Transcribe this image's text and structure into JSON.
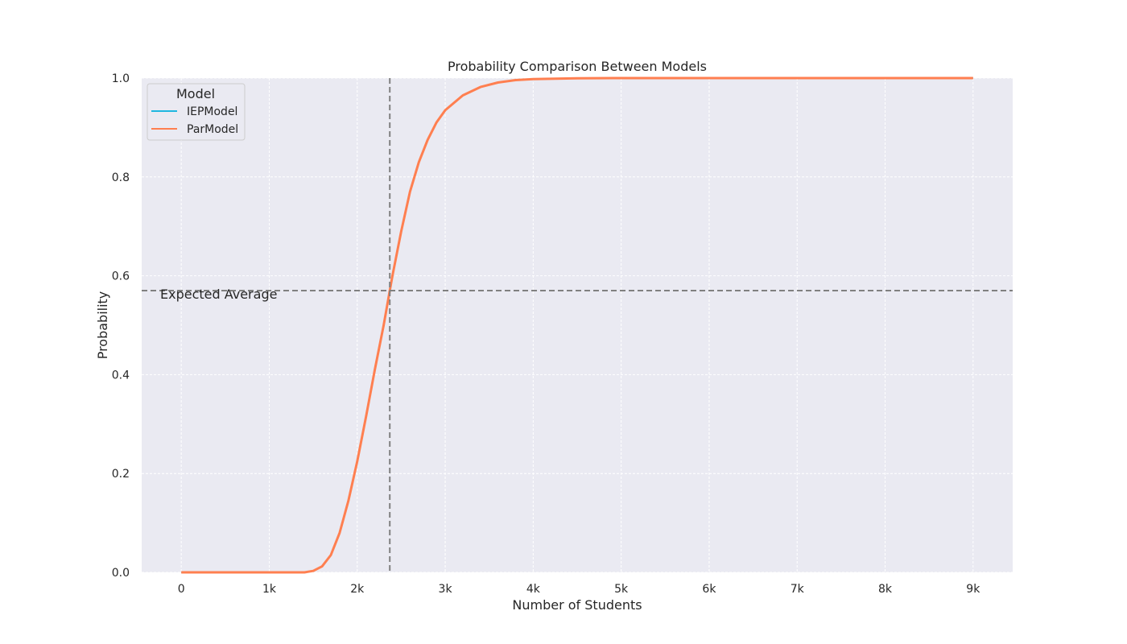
{
  "chart_data": {
    "type": "line",
    "title": "Probability Comparison Between Models",
    "xlabel": "Number of Students",
    "ylabel": "Probability",
    "xlim": [
      -450,
      9450
    ],
    "ylim": [
      0,
      1
    ],
    "x_ticks": [
      {
        "value": 0,
        "label": "0"
      },
      {
        "value": 1000,
        "label": "1k"
      },
      {
        "value": 2000,
        "label": "2k"
      },
      {
        "value": 3000,
        "label": "3k"
      },
      {
        "value": 4000,
        "label": "4k"
      },
      {
        "value": 5000,
        "label": "5k"
      },
      {
        "value": 6000,
        "label": "6k"
      },
      {
        "value": 7000,
        "label": "7k"
      },
      {
        "value": 8000,
        "label": "8k"
      },
      {
        "value": 9000,
        "label": "9k"
      }
    ],
    "y_ticks": [
      {
        "value": 0.0,
        "label": "0.0"
      },
      {
        "value": 0.2,
        "label": "0.2"
      },
      {
        "value": 0.4,
        "label": "0.4"
      },
      {
        "value": 0.6,
        "label": "0.6"
      },
      {
        "value": 0.8,
        "label": "0.8"
      },
      {
        "value": 1.0,
        "label": "1.0"
      }
    ],
    "grid": true,
    "legend": {
      "title": "Model",
      "placement": "top-left",
      "entries": [
        {
          "name": "IEPModel",
          "color": "#1fb7e0"
        },
        {
          "name": "ParModel",
          "color": "#ff7f50"
        }
      ]
    },
    "series": [
      {
        "name": "IEPModel",
        "color": "#1fb7e0",
        "x": [
          0,
          1000,
          1400,
          1500,
          1600,
          1700,
          1800,
          1900,
          2000,
          2100,
          2200,
          2300,
          2370,
          2400,
          2500,
          2600,
          2700,
          2800,
          2900,
          3000,
          3200,
          3400,
          3600,
          3800,
          4000,
          4500,
          5000,
          6000,
          7000,
          8000,
          9000
        ],
        "values": [
          0.0,
          0.0,
          0.0,
          0.003,
          0.012,
          0.035,
          0.08,
          0.145,
          0.225,
          0.315,
          0.41,
          0.5,
          0.57,
          0.6,
          0.69,
          0.77,
          0.83,
          0.875,
          0.91,
          0.935,
          0.965,
          0.982,
          0.991,
          0.996,
          0.998,
          0.9995,
          1.0,
          1.0,
          1.0,
          1.0,
          1.0
        ]
      },
      {
        "name": "ParModel",
        "color": "#ff7f50",
        "x": [
          0,
          1000,
          1400,
          1500,
          1600,
          1700,
          1800,
          1900,
          2000,
          2100,
          2200,
          2300,
          2370,
          2400,
          2500,
          2600,
          2700,
          2800,
          2900,
          3000,
          3200,
          3400,
          3600,
          3800,
          4000,
          4500,
          5000,
          6000,
          7000,
          8000,
          9000
        ],
        "values": [
          0.0,
          0.0,
          0.0,
          0.003,
          0.012,
          0.035,
          0.08,
          0.145,
          0.225,
          0.315,
          0.41,
          0.5,
          0.57,
          0.6,
          0.69,
          0.77,
          0.83,
          0.875,
          0.91,
          0.935,
          0.965,
          0.982,
          0.991,
          0.996,
          0.998,
          0.9995,
          1.0,
          1.0,
          1.0,
          1.0,
          1.0
        ]
      }
    ],
    "reference_lines": {
      "vertical_x": 2370,
      "horizontal_y": 0.57,
      "color": "#808080",
      "annotation": "Expected Average"
    }
  },
  "colors": {
    "plot_background": "#eaeaf2",
    "grid": "#ffffff",
    "text": "#262626"
  }
}
